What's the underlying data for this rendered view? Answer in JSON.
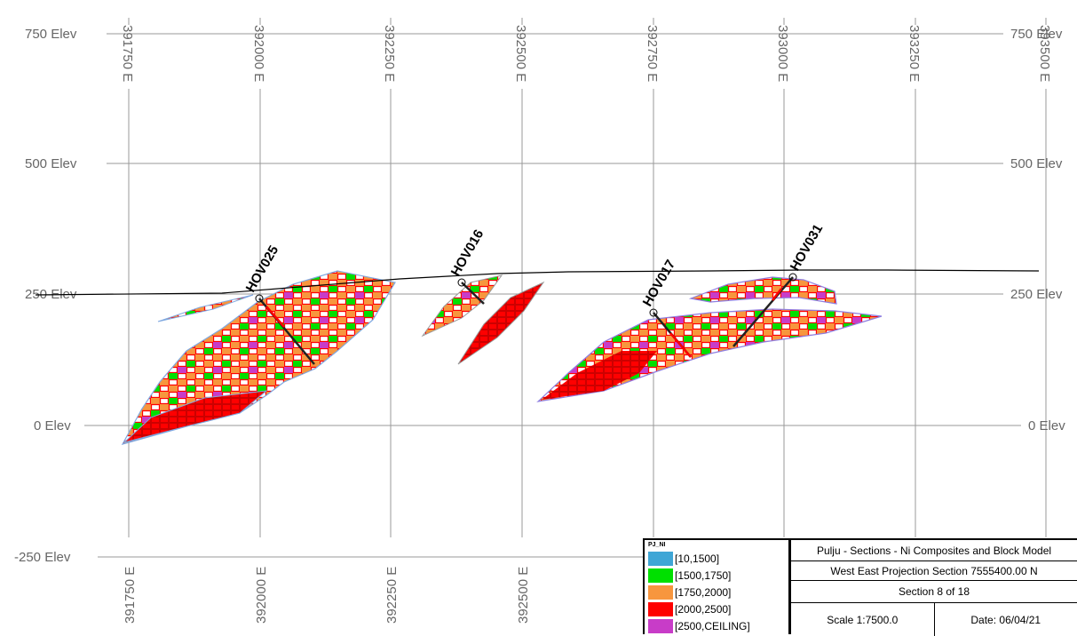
{
  "elevation_labels": [
    "750 Elev",
    "500 Elev",
    "250 Elev",
    "0 Elev",
    "-250 Elev"
  ],
  "easting_labels": [
    "391750 E",
    "392000 E",
    "392250 E",
    "392500 E",
    "392750 E",
    "393000 E",
    "393250 E",
    "393500 E"
  ],
  "drillholes": [
    "HOV025",
    "HOV016",
    "HOV017",
    "HOV031"
  ],
  "legend": {
    "title": "PJ_NI",
    "items": [
      {
        "label": "[10,1500]",
        "color": "#3fa6d6"
      },
      {
        "label": "[1500,1750]",
        "color": "#00e000"
      },
      {
        "label": "[1750,2000]",
        "color": "#f7963e"
      },
      {
        "label": "[2000,2500]",
        "color": "#ff0000"
      },
      {
        "label": "[2500,CEILING]",
        "color": "#c83cc8"
      }
    ]
  },
  "title_block": {
    "title": "Pulju - Sections - Ni Composites and Block Model",
    "projection": "West East Projection Section 7555400.00 N",
    "section": "Section 8 of 18",
    "scale": "Scale 1:7500.0",
    "date": "Date: 06/04/21"
  }
}
